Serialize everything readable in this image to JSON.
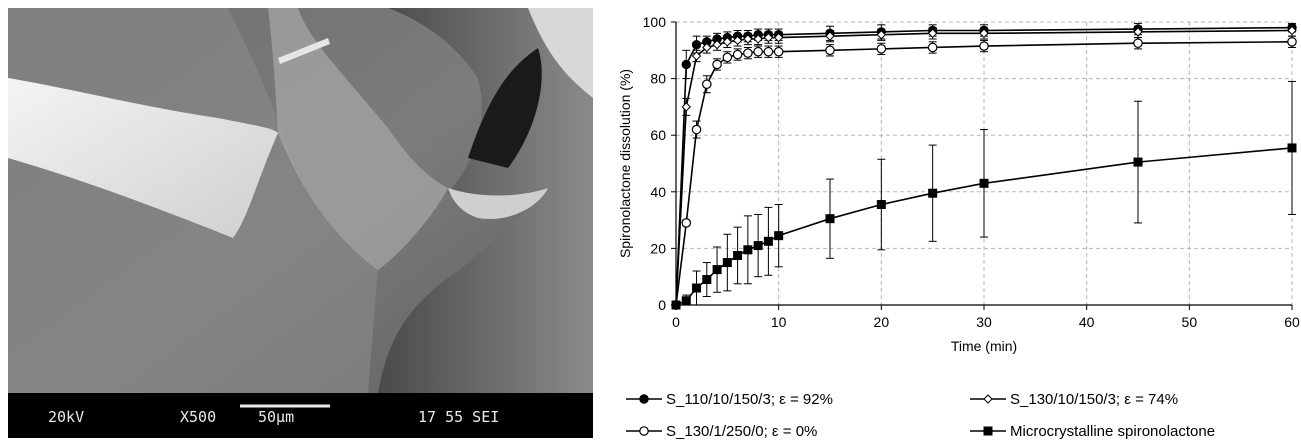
{
  "micrograph": {
    "voltage": "20kV",
    "magnification": "X500",
    "scale": "50µm",
    "code": "17 55 SEI"
  },
  "chart_data": {
    "type": "line",
    "xlabel": "Time (min)",
    "ylabel": "Spironolactone dissolution (%)",
    "xlim": [
      0,
      60
    ],
    "ylim": [
      0,
      100
    ],
    "xticks": [
      0,
      10,
      20,
      30,
      40,
      50,
      60
    ],
    "yticks": [
      0,
      20,
      40,
      60,
      80,
      100
    ],
    "grid": "dashed",
    "legend_position": "bottom",
    "series": [
      {
        "name": "S_110/10/150/3; ε = 92%",
        "marker": "filled-circle",
        "x": [
          0,
          1,
          2,
          3,
          4,
          5,
          6,
          7,
          8,
          9,
          10,
          15,
          20,
          25,
          30,
          45,
          60
        ],
        "y": [
          0,
          85,
          92,
          93,
          94,
          94.5,
          95,
          95,
          95.5,
          95.5,
          95.5,
          96,
          96.5,
          97,
          97,
          97.5,
          98
        ],
        "err": [
          0,
          5,
          3,
          2,
          2,
          2,
          2,
          2,
          2,
          2,
          2,
          2.5,
          2.5,
          2,
          2,
          2,
          1.5
        ]
      },
      {
        "name": "S_130/10/150/3; ε = 74%",
        "marker": "open-diamond",
        "x": [
          0,
          1,
          2,
          3,
          4,
          5,
          6,
          7,
          8,
          9,
          10,
          15,
          20,
          25,
          30,
          45,
          60
        ],
        "y": [
          0,
          70,
          88,
          91,
          92,
          93,
          93.5,
          94,
          94,
          94.5,
          94.5,
          95,
          95.5,
          96,
          96,
          96.5,
          97
        ],
        "err": [
          0,
          3,
          2,
          2,
          2,
          2,
          2,
          2,
          2,
          2,
          2,
          2,
          2,
          2,
          2,
          2,
          2
        ]
      },
      {
        "name": "S_130/1/250/0; ε = 0%",
        "marker": "open-circle",
        "x": [
          0,
          1,
          2,
          3,
          4,
          5,
          6,
          7,
          8,
          9,
          10,
          15,
          20,
          25,
          30,
          45,
          60
        ],
        "y": [
          0,
          29,
          62,
          78,
          85,
          87.5,
          88.5,
          89,
          89.5,
          89.5,
          89.5,
          90,
          90.5,
          91,
          91.5,
          92.5,
          93
        ],
        "err": [
          0,
          1,
          3,
          3,
          2,
          2,
          2,
          2,
          2,
          2,
          2,
          2,
          2,
          2,
          2,
          2,
          2
        ]
      },
      {
        "name": "Microcrystalline spironolactone",
        "marker": "filled-square",
        "x": [
          0,
          1,
          2,
          3,
          4,
          5,
          6,
          7,
          8,
          9,
          10,
          15,
          20,
          25,
          30,
          45,
          60
        ],
        "y": [
          0,
          1.5,
          6,
          9,
          12.5,
          15,
          17.5,
          19.5,
          21,
          22.5,
          24.5,
          30.5,
          35.5,
          39.5,
          43,
          50.5,
          55.5
        ],
        "err": [
          0,
          2,
          6,
          6,
          8,
          10,
          10,
          12,
          11,
          12,
          11,
          14,
          16,
          17,
          19,
          21.5,
          23.5
        ]
      }
    ]
  }
}
